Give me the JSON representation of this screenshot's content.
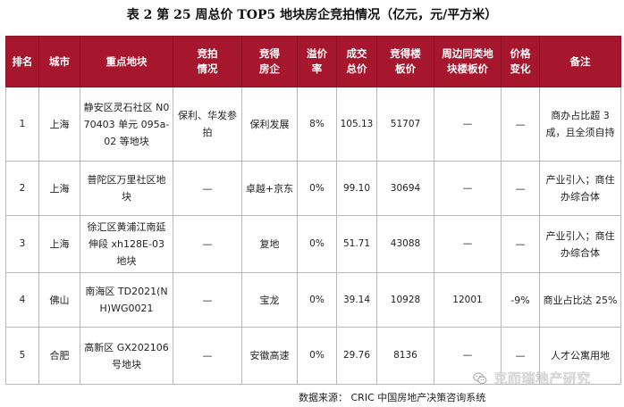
{
  "title": "表 2   第 25 周总价 TOP5 地块房企竞拍情况（亿元，元/平方米）",
  "table": {
    "headers": [
      "排名",
      "城市",
      "重点地块",
      "竞拍\n情况",
      "竞得\n房企",
      "溢价\n率",
      "成交\n总价",
      "竞得楼\n板价",
      "周边同类地\n块楼板价",
      "价格\n变化",
      "备注"
    ],
    "rows": [
      {
        "rank": "1",
        "city": "上海",
        "parcel": "静安区灵石社区 N070403 单元 095a-02 等地块",
        "bidding": "保利、华发参拍",
        "winner": "保利发展",
        "premium": "8%",
        "total_price": "105.13",
        "floor_price": "51707",
        "nearby_price": "—",
        "price_change": "—",
        "note": "商办占比超 3 成，且全须自持"
      },
      {
        "rank": "2",
        "city": "上海",
        "parcel": "普陀区万里社区地块",
        "bidding": "—",
        "winner": "卓越+京东",
        "premium": "0%",
        "total_price": "99.10",
        "floor_price": "30694",
        "nearby_price": "—",
        "price_change": "—",
        "note": "产业引入；商住办综合体"
      },
      {
        "rank": "3",
        "city": "上海",
        "parcel": "徐汇区黄浦江南延伸段 xh128E-03 地块",
        "bidding": "—",
        "winner": "复地",
        "premium": "0%",
        "total_price": "51.71",
        "floor_price": "43088",
        "nearby_price": "—",
        "price_change": "—",
        "note": "产业引入；商住办综合体"
      },
      {
        "rank": "4",
        "city": "佛山",
        "parcel": "南海区 TD2021(NH)WG0021",
        "bidding": "—",
        "winner": "宝龙",
        "premium": "0%",
        "total_price": "39.14",
        "floor_price": "10928",
        "nearby_price": "12001",
        "price_change": "-9%",
        "note": "商业占比达 25%"
      },
      {
        "rank": "5",
        "city": "合肥",
        "parcel": "高新区 GX202106 号地块",
        "bidding": "—",
        "winner": "安徽高速",
        "premium": "0%",
        "total_price": "29.76",
        "floor_price": "8136",
        "nearby_price": "—",
        "price_change": "—",
        "note": "人才公寓用地"
      }
    ]
  },
  "footer": {
    "source": "数据来源：  CRIC 中国房地产决策咨询系统"
  },
  "watermark": {
    "text": "克而瑞地产研究",
    "icon": "wechat-icon"
  },
  "colors": {
    "header_bg": "#a6162d",
    "header_text": "#ffffff",
    "negative": "#e8262b",
    "grid": "#b9b9b9"
  }
}
